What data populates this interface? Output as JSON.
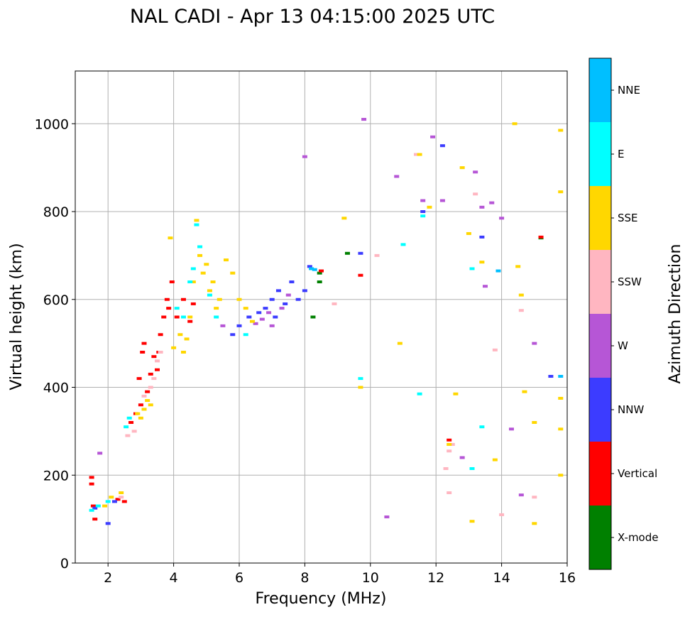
{
  "chart_data": {
    "type": "scatter",
    "title": "NAL CADI - Apr 13 04:15:00 2025 UTC",
    "xlabel": "Frequency (MHz)",
    "ylabel": "Virtual height (km)",
    "xlim": [
      1,
      16
    ],
    "ylim": [
      0,
      1120
    ],
    "xticks": [
      2,
      4,
      6,
      8,
      10,
      12,
      14,
      16
    ],
    "yticks": [
      0,
      200,
      400,
      600,
      800,
      1000
    ],
    "grid": true,
    "colorbar": {
      "title": "Azimuth Direction",
      "categories": [
        {
          "label": "X-mode",
          "color": "#008000"
        },
        {
          "label": "Vertical",
          "color": "#ff0000"
        },
        {
          "label": "NNW",
          "color": "#3c3cff"
        },
        {
          "label": "W",
          "color": "#b656d6"
        },
        {
          "label": "SSW",
          "color": "#ffb6c1"
        },
        {
          "label": "SSE",
          "color": "#ffd700"
        },
        {
          "label": "E",
          "color": "#00ffff"
        },
        {
          "label": "NNE",
          "color": "#00bfff"
        }
      ]
    },
    "series": [
      {
        "name": "X-mode",
        "points": [
          [
            8.45,
            660
          ],
          [
            8.45,
            640
          ],
          [
            8.25,
            560
          ],
          [
            9.3,
            705
          ],
          [
            15.2,
            740
          ]
        ]
      },
      {
        "name": "Vertical",
        "points": [
          [
            1.5,
            195
          ],
          [
            1.5,
            180
          ],
          [
            1.55,
            130
          ],
          [
            1.6,
            100
          ],
          [
            2.3,
            145
          ],
          [
            2.5,
            140
          ],
          [
            2.7,
            320
          ],
          [
            2.85,
            340
          ],
          [
            2.95,
            420
          ],
          [
            3.0,
            360
          ],
          [
            3.05,
            480
          ],
          [
            3.1,
            500
          ],
          [
            3.2,
            390
          ],
          [
            3.3,
            430
          ],
          [
            3.4,
            470
          ],
          [
            3.5,
            440
          ],
          [
            3.55,
            480
          ],
          [
            3.6,
            520
          ],
          [
            3.7,
            560
          ],
          [
            3.8,
            600
          ],
          [
            3.85,
            580
          ],
          [
            3.95,
            640
          ],
          [
            4.1,
            560
          ],
          [
            4.3,
            600
          ],
          [
            4.5,
            550
          ],
          [
            4.6,
            590
          ],
          [
            8.5,
            665
          ],
          [
            12.4,
            280
          ],
          [
            15.2,
            742
          ],
          [
            9.7,
            655
          ]
        ]
      },
      {
        "name": "NNW",
        "points": [
          [
            1.6,
            125
          ],
          [
            2.0,
            90
          ],
          [
            2.2,
            140
          ],
          [
            5.8,
            520
          ],
          [
            6.0,
            540
          ],
          [
            6.3,
            560
          ],
          [
            6.6,
            570
          ],
          [
            6.8,
            580
          ],
          [
            7.0,
            600
          ],
          [
            7.1,
            560
          ],
          [
            7.2,
            620
          ],
          [
            7.4,
            590
          ],
          [
            7.6,
            640
          ],
          [
            7.8,
            600
          ],
          [
            8.0,
            620
          ],
          [
            8.15,
            675
          ],
          [
            9.7,
            705
          ],
          [
            11.6,
            800
          ],
          [
            12.2,
            950
          ],
          [
            13.4,
            742
          ],
          [
            15.5,
            425
          ]
        ]
      },
      {
        "name": "W",
        "points": [
          [
            1.75,
            250
          ],
          [
            5.5,
            540
          ],
          [
            6.5,
            545
          ],
          [
            6.7,
            555
          ],
          [
            6.9,
            570
          ],
          [
            7.0,
            540
          ],
          [
            7.3,
            580
          ],
          [
            7.5,
            610
          ],
          [
            8.0,
            925
          ],
          [
            9.8,
            1010
          ],
          [
            10.8,
            880
          ],
          [
            11.6,
            825
          ],
          [
            11.9,
            970
          ],
          [
            12.2,
            825
          ],
          [
            13.2,
            890
          ],
          [
            13.5,
            630
          ],
          [
            13.4,
            810
          ],
          [
            14.0,
            785
          ],
          [
            14.3,
            305
          ],
          [
            14.6,
            155
          ],
          [
            10.5,
            105
          ],
          [
            15.0,
            500
          ],
          [
            12.8,
            240
          ],
          [
            13.7,
            820
          ]
        ]
      },
      {
        "name": "SSW",
        "points": [
          [
            2.4,
            150
          ],
          [
            2.6,
            290
          ],
          [
            2.8,
            300
          ],
          [
            3.1,
            380
          ],
          [
            3.3,
            400
          ],
          [
            3.4,
            420
          ],
          [
            3.5,
            460
          ],
          [
            3.6,
            480
          ],
          [
            8.9,
            590
          ],
          [
            10.2,
            700
          ],
          [
            11.4,
            930
          ],
          [
            12.4,
            255
          ],
          [
            12.5,
            270
          ],
          [
            13.2,
            840
          ],
          [
            13.8,
            485
          ],
          [
            14.6,
            575
          ],
          [
            14.0,
            110
          ],
          [
            15.0,
            150
          ],
          [
            12.4,
            160
          ],
          [
            12.3,
            215
          ]
        ]
      },
      {
        "name": "SSE",
        "points": [
          [
            1.9,
            130
          ],
          [
            2.1,
            150
          ],
          [
            2.4,
            160
          ],
          [
            2.9,
            340
          ],
          [
            3.0,
            330
          ],
          [
            3.1,
            350
          ],
          [
            3.2,
            370
          ],
          [
            3.3,
            360
          ],
          [
            3.9,
            740
          ],
          [
            4.0,
            490
          ],
          [
            4.2,
            520
          ],
          [
            4.3,
            480
          ],
          [
            4.4,
            510
          ],
          [
            4.5,
            560
          ],
          [
            4.6,
            640
          ],
          [
            4.7,
            780
          ],
          [
            4.8,
            700
          ],
          [
            4.9,
            660
          ],
          [
            5.0,
            680
          ],
          [
            5.1,
            620
          ],
          [
            5.2,
            640
          ],
          [
            5.3,
            580
          ],
          [
            5.4,
            600
          ],
          [
            5.6,
            690
          ],
          [
            5.8,
            660
          ],
          [
            6.0,
            600
          ],
          [
            6.2,
            580
          ],
          [
            6.4,
            550
          ],
          [
            9.2,
            785
          ],
          [
            9.7,
            400
          ],
          [
            10.9,
            500
          ],
          [
            11.5,
            930
          ],
          [
            11.8,
            810
          ],
          [
            12.4,
            270
          ],
          [
            12.6,
            385
          ],
          [
            12.8,
            900
          ],
          [
            13.0,
            750
          ],
          [
            13.4,
            685
          ],
          [
            13.8,
            235
          ],
          [
            14.4,
            1000
          ],
          [
            14.5,
            675
          ],
          [
            14.6,
            610
          ],
          [
            14.7,
            390
          ],
          [
            15.0,
            320
          ],
          [
            15.8,
            985
          ],
          [
            15.8,
            845
          ],
          [
            15.8,
            375
          ],
          [
            15.8,
            305
          ],
          [
            15.8,
            200
          ],
          [
            13.1,
            95
          ],
          [
            15.0,
            90
          ]
        ]
      },
      {
        "name": "E",
        "points": [
          [
            1.5,
            120
          ],
          [
            1.7,
            130
          ],
          [
            2.0,
            140
          ],
          [
            2.55,
            310
          ],
          [
            2.65,
            330
          ],
          [
            4.1,
            580
          ],
          [
            4.3,
            560
          ],
          [
            4.5,
            640
          ],
          [
            4.6,
            670
          ],
          [
            4.7,
            770
          ],
          [
            4.8,
            720
          ],
          [
            5.1,
            610
          ],
          [
            5.3,
            560
          ],
          [
            6.2,
            520
          ],
          [
            11.0,
            725
          ],
          [
            11.6,
            790
          ],
          [
            13.1,
            670
          ],
          [
            13.4,
            310
          ],
          [
            13.1,
            215
          ],
          [
            11.5,
            385
          ],
          [
            9.7,
            420
          ]
        ]
      },
      {
        "name": "NNE",
        "points": [
          [
            8.2,
            670
          ],
          [
            8.3,
            668
          ],
          [
            13.9,
            665
          ],
          [
            15.8,
            425
          ]
        ]
      }
    ]
  }
}
